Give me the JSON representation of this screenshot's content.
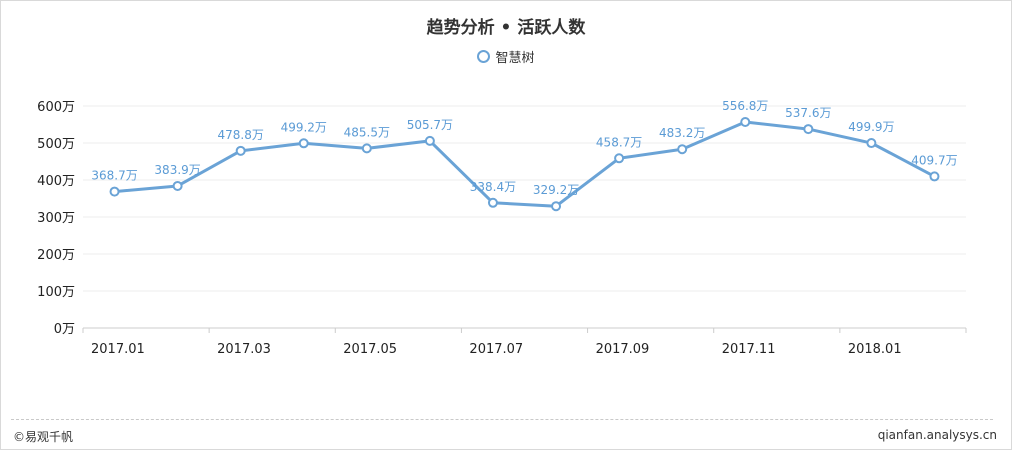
{
  "footer": {
    "left": "©易观千帆",
    "right": "qianfan.analysys.cn"
  },
  "colors": {
    "line": "#6aa3d6",
    "label": "#5b9bd5",
    "grid": "#eeeeee",
    "axis": "#cccccc"
  },
  "chart_data": {
    "type": "line",
    "title": "趋势分析 • 活跃人数",
    "legend_position": "top-center",
    "grid": true,
    "y_unit": "万",
    "ylim": [
      0,
      600
    ],
    "yticks": [
      "0万",
      "100万",
      "200万",
      "300万",
      "400万",
      "500万",
      "600万"
    ],
    "xtick_labels": [
      "2017.01",
      "2017.03",
      "2017.05",
      "2017.07",
      "2017.09",
      "2017.11",
      "2018.01"
    ],
    "categories": [
      "2017.01",
      "2017.02",
      "2017.03",
      "2017.04",
      "2017.05",
      "2017.06",
      "2017.07",
      "2017.08",
      "2017.09",
      "2017.10",
      "2017.11",
      "2017.12",
      "2018.01",
      "2018.02"
    ],
    "series": [
      {
        "name": "智慧树",
        "values": [
          368.7,
          383.9,
          478.8,
          499.2,
          485.5,
          505.7,
          338.4,
          329.2,
          458.7,
          483.2,
          556.8,
          537.6,
          499.9,
          409.7
        ],
        "labels": [
          "368.7万",
          "383.9万",
          "478.8万",
          "499.2万",
          "485.5万",
          "505.7万",
          "338.4万",
          "329.2万",
          "458.7万",
          "483.2万",
          "556.8万",
          "537.6万",
          "499.9万",
          "409.7万"
        ]
      }
    ]
  }
}
